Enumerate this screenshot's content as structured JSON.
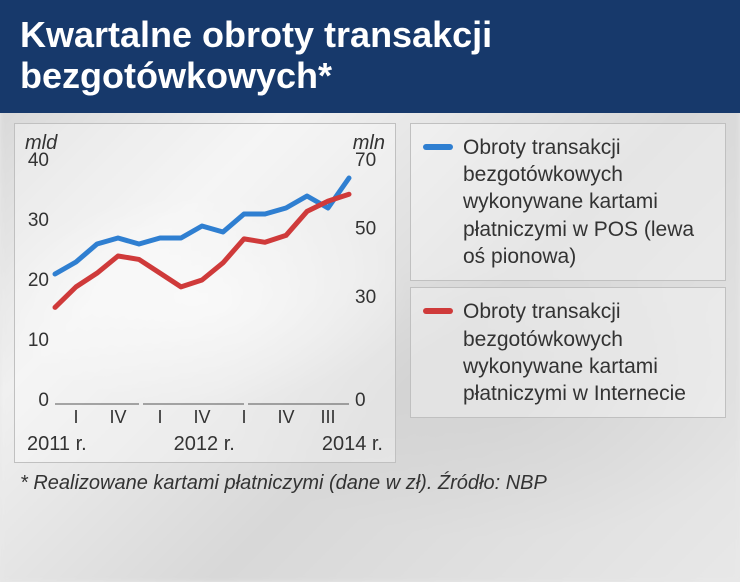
{
  "title": "Kwartalne obroty transakcji bezgotówkowych*",
  "chart": {
    "type": "line",
    "left_axis": {
      "unit": "mld",
      "min": 0,
      "max": 40,
      "tick_step": 10,
      "ticks": [
        "40",
        "30",
        "20",
        "10",
        "0"
      ]
    },
    "right_axis": {
      "unit": "mln",
      "min": 0,
      "max": 70,
      "tick_step": 20,
      "ticks": [
        "70",
        "50",
        "30",
        "0"
      ]
    },
    "x_ticks": [
      "I",
      "IV",
      "I",
      "IV",
      "I",
      "IV",
      "III"
    ],
    "x_years": [
      "2011 r.",
      "2012 r.",
      "2014 r."
    ],
    "series": [
      {
        "name": "pos",
        "color": "#2f7fd1",
        "width": 5,
        "axis": "left",
        "values": [
          21,
          23,
          26,
          27,
          26,
          27,
          27,
          29,
          28,
          31,
          31,
          32,
          34,
          32,
          37
        ]
      },
      {
        "name": "internet",
        "color": "#cf3a3a",
        "width": 5,
        "axis": "right",
        "values": [
          27,
          33,
          37,
          42,
          41,
          37,
          33,
          35,
          40,
          47,
          46,
          48,
          55,
          58,
          60
        ]
      }
    ],
    "background": "rgba(255,255,255,0.35)",
    "border_color": "#c0c0c0",
    "text_color": "#333333",
    "font_size_ticks": 19
  },
  "legend": [
    {
      "color": "#2f7fd1",
      "text": "Obroty transakcji bezgotówkowych wykonywane kartami płatniczymi w POS (lewa oś pionowa)"
    },
    {
      "color": "#cf3a3a",
      "text": "Obroty transakcji bezgotówkowych wykonywane kartami płatniczymi w Internecie"
    }
  ],
  "footnote": "* Realizowane kartami płatniczymi (dane w zł). Źródło: NBP"
}
